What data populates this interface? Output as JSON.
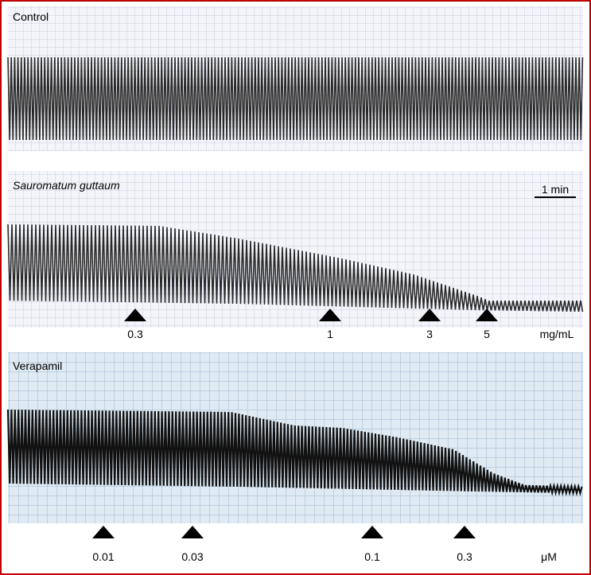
{
  "panels": [
    {
      "label": "Control"
    },
    {
      "label": "Sauromatum guttaum",
      "scale_bar": "1 min",
      "doses": [
        "0.3",
        "1",
        "3",
        "5"
      ],
      "unit": "mg/mL"
    },
    {
      "label": "Verapamil",
      "doses": [
        "0.01",
        "0.03",
        "0.1",
        "0.3"
      ],
      "unit": "μM"
    }
  ]
}
